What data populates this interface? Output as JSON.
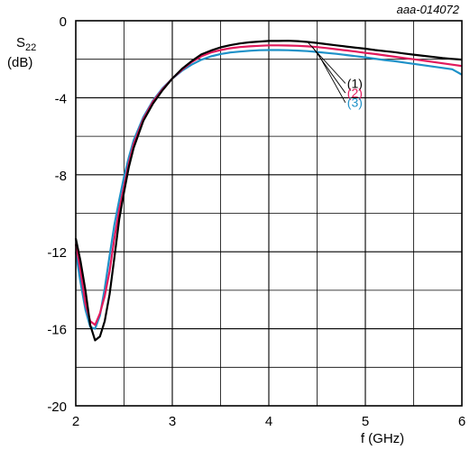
{
  "chart_data": {
    "type": "line",
    "doc_id": "aaa-014072",
    "ylabel_main": "S",
    "ylabel_sub": "22",
    "ylabel_unit": "(dB)",
    "xlabel": "f (GHz)",
    "xlim": [
      2,
      6
    ],
    "ylim": [
      -20,
      0
    ],
    "x_ticks": [
      "2",
      "3",
      "4",
      "5",
      "6"
    ],
    "y_ticks": [
      "0",
      "-4",
      "-8",
      "-12",
      "-16",
      "-20"
    ],
    "grid": true,
    "series": [
      {
        "name": "(1)",
        "color": "#000000",
        "x": [
          2.0,
          2.05,
          2.1,
          2.15,
          2.2,
          2.25,
          2.3,
          2.35,
          2.4,
          2.45,
          2.5,
          2.55,
          2.6,
          2.7,
          2.8,
          2.9,
          3.0,
          3.1,
          3.2,
          3.3,
          3.4,
          3.5,
          3.6,
          3.7,
          3.8,
          3.9,
          4.0,
          4.1,
          4.2,
          4.3,
          4.4,
          4.5,
          4.6,
          4.7,
          4.8,
          4.9,
          5.0,
          5.1,
          5.2,
          5.3,
          5.4,
          5.5,
          5.6,
          5.7,
          5.8,
          5.9,
          6.0
        ],
        "y": [
          -11.3,
          -12.5,
          -14.0,
          -15.8,
          -16.6,
          -16.4,
          -15.6,
          -14.2,
          -12.3,
          -10.3,
          -8.9,
          -7.6,
          -6.6,
          -5.2,
          -4.3,
          -3.6,
          -3.0,
          -2.5,
          -2.1,
          -1.75,
          -1.55,
          -1.38,
          -1.27,
          -1.18,
          -1.12,
          -1.08,
          -1.05,
          -1.05,
          -1.04,
          -1.06,
          -1.1,
          -1.15,
          -1.22,
          -1.28,
          -1.34,
          -1.4,
          -1.45,
          -1.52,
          -1.58,
          -1.63,
          -1.7,
          -1.76,
          -1.82,
          -1.88,
          -1.94,
          -1.98,
          -2.02
        ]
      },
      {
        "name": "(2)",
        "color": "#e2195c",
        "x": [
          2.0,
          2.05,
          2.1,
          2.15,
          2.2,
          2.25,
          2.3,
          2.35,
          2.4,
          2.45,
          2.5,
          2.55,
          2.6,
          2.7,
          2.8,
          2.9,
          3.0,
          3.1,
          3.2,
          3.3,
          3.4,
          3.5,
          3.6,
          3.7,
          3.8,
          3.9,
          4.0,
          4.1,
          4.2,
          4.3,
          4.4,
          4.5,
          4.6,
          4.7,
          4.8,
          4.9,
          5.0,
          5.1,
          5.2,
          5.3,
          5.4,
          5.5,
          5.6,
          5.7,
          5.8,
          5.9,
          6.0
        ],
        "y": [
          -11.6,
          -13.0,
          -14.7,
          -15.6,
          -15.8,
          -15.2,
          -14.3,
          -13.0,
          -11.3,
          -9.8,
          -8.6,
          -7.4,
          -6.4,
          -5.1,
          -4.2,
          -3.55,
          -3.0,
          -2.55,
          -2.15,
          -1.85,
          -1.65,
          -1.52,
          -1.43,
          -1.37,
          -1.33,
          -1.3,
          -1.28,
          -1.28,
          -1.29,
          -1.3,
          -1.33,
          -1.37,
          -1.42,
          -1.48,
          -1.54,
          -1.6,
          -1.67,
          -1.73,
          -1.8,
          -1.87,
          -1.94,
          -2.0,
          -2.07,
          -2.14,
          -2.21,
          -2.28,
          -2.35
        ]
      },
      {
        "name": "(3)",
        "color": "#1e91c8",
        "x": [
          2.0,
          2.05,
          2.1,
          2.15,
          2.2,
          2.25,
          2.3,
          2.35,
          2.4,
          2.45,
          2.5,
          2.55,
          2.6,
          2.7,
          2.8,
          2.9,
          3.0,
          3.1,
          3.2,
          3.3,
          3.4,
          3.5,
          3.6,
          3.7,
          3.8,
          3.9,
          4.0,
          4.1,
          4.2,
          4.3,
          4.4,
          4.5,
          4.6,
          4.7,
          4.8,
          4.9,
          5.0,
          5.1,
          5.2,
          5.3,
          5.4,
          5.5,
          5.6,
          5.7,
          5.8,
          5.9,
          6.0
        ],
        "y": [
          -12.0,
          -13.6,
          -15.0,
          -15.9,
          -16.0,
          -15.3,
          -13.9,
          -12.2,
          -10.6,
          -9.3,
          -8.1,
          -7.1,
          -6.2,
          -5.0,
          -4.15,
          -3.5,
          -3.0,
          -2.6,
          -2.28,
          -2.03,
          -1.85,
          -1.73,
          -1.65,
          -1.6,
          -1.56,
          -1.53,
          -1.52,
          -1.52,
          -1.53,
          -1.55,
          -1.58,
          -1.62,
          -1.67,
          -1.72,
          -1.78,
          -1.84,
          -1.9,
          -1.97,
          -2.04,
          -2.1,
          -2.17,
          -2.24,
          -2.31,
          -2.38,
          -2.45,
          -2.52,
          -2.8
        ]
      }
    ]
  }
}
